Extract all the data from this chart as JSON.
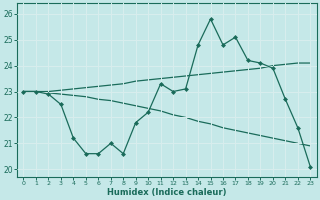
{
  "xlabel": "Humidex (Indice chaleur)",
  "xlim": [
    -0.5,
    23.5
  ],
  "ylim": [
    19.7,
    26.4
  ],
  "yticks": [
    20,
    21,
    22,
    23,
    24,
    25,
    26
  ],
  "xticks": [
    0,
    1,
    2,
    3,
    4,
    5,
    6,
    7,
    8,
    9,
    10,
    11,
    12,
    13,
    14,
    15,
    16,
    17,
    18,
    19,
    20,
    21,
    22,
    23
  ],
  "background_color": "#c5e8e8",
  "line_color": "#1a6b5a",
  "grid_color": "#d8eeee",
  "line1_y": [
    23.0,
    23.0,
    22.9,
    22.5,
    21.2,
    20.6,
    20.6,
    21.0,
    20.6,
    21.8,
    22.2,
    23.3,
    23.0,
    23.1,
    24.8,
    25.8,
    24.8,
    25.1,
    24.2,
    24.1,
    23.9,
    22.7,
    21.6,
    20.1
  ],
  "line2_y": [
    23.0,
    23.0,
    22.95,
    22.9,
    22.85,
    22.8,
    22.7,
    22.65,
    22.55,
    22.45,
    22.35,
    22.25,
    22.1,
    22.0,
    21.85,
    21.75,
    21.6,
    21.5,
    21.4,
    21.3,
    21.2,
    21.1,
    21.0,
    20.9
  ],
  "line3_y": [
    23.0,
    23.0,
    23.0,
    23.05,
    23.1,
    23.15,
    23.2,
    23.25,
    23.3,
    23.4,
    23.45,
    23.5,
    23.55,
    23.6,
    23.65,
    23.7,
    23.75,
    23.8,
    23.85,
    23.9,
    24.0,
    24.05,
    24.1,
    24.1
  ]
}
